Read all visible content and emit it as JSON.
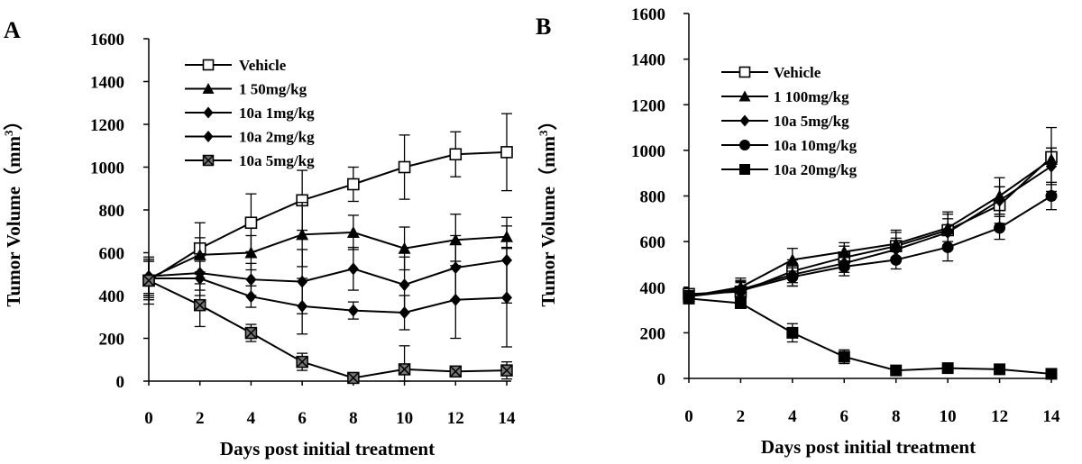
{
  "chart_data": [
    {
      "type": "line",
      "panel_label": "A",
      "title": "",
      "xlabel": "Days post initial treatment",
      "ylabel_main": "Tumor Volume（mm",
      "ylabel_sup": "3",
      "ylabel_close": "）",
      "xlim": [
        0,
        14
      ],
      "ylim": [
        0,
        1600
      ],
      "xticks": [
        "0",
        "2",
        "4",
        "6",
        "8",
        "10",
        "12",
        "14"
      ],
      "yticks": [
        "0",
        "200",
        "400",
        "600",
        "800",
        "1000",
        "1200",
        "1400",
        "1600"
      ],
      "legend_position": "top-center",
      "series": [
        {
          "name": "Vehicle",
          "marker": "open-square",
          "x": [
            0,
            2,
            4,
            6,
            8,
            10,
            12,
            14
          ],
          "values": [
            470,
            620,
            740,
            845,
            920,
            1000,
            1060,
            1070
          ],
          "errors": [
            110,
            120,
            135,
            140,
            80,
            150,
            105,
            180
          ]
        },
        {
          "name": "1 50mg/kg",
          "marker": "triangle",
          "x": [
            0,
            2,
            4,
            6,
            8,
            10,
            12,
            14
          ],
          "values": [
            480,
            590,
            600,
            685,
            695,
            620,
            660,
            675
          ],
          "errors": [
            90,
            80,
            80,
            150,
            80,
            100,
            120,
            50
          ]
        },
        {
          "name": "10a 1mg/kg",
          "marker": "diamond",
          "x": [
            0,
            2,
            4,
            6,
            8,
            10,
            12,
            14
          ],
          "values": [
            490,
            505,
            475,
            465,
            525,
            450,
            530,
            565
          ],
          "errors": [
            80,
            80,
            75,
            150,
            100,
            130,
            150,
            200
          ]
        },
        {
          "name": "10a 2mg/kg",
          "marker": "diamond",
          "x": [
            0,
            2,
            4,
            6,
            8,
            10,
            12,
            14
          ],
          "values": [
            480,
            480,
            395,
            350,
            330,
            320,
            380,
            390
          ],
          "errors": [
            80,
            80,
            50,
            130,
            40,
            80,
            180,
            230
          ]
        },
        {
          "name": "10a 5mg/kg",
          "marker": "crossed-square",
          "x": [
            0,
            2,
            4,
            6,
            8,
            10,
            12,
            14
          ],
          "values": [
            470,
            355,
            225,
            90,
            15,
            55,
            45,
            50
          ],
          "errors": [
            90,
            100,
            40,
            40,
            15,
            110,
            20,
            40
          ]
        }
      ]
    },
    {
      "type": "line",
      "panel_label": "B",
      "title": "",
      "xlabel": "Days post initial treatment",
      "ylabel_main": "Tumor Volume（mm",
      "ylabel_sup": "3",
      "ylabel_close": "）",
      "xlim": [
        0,
        14
      ],
      "ylim": [
        0,
        1600
      ],
      "xticks": [
        "0",
        "2",
        "4",
        "6",
        "8",
        "10",
        "12",
        "14"
      ],
      "yticks": [
        "0",
        "200",
        "400",
        "600",
        "800",
        "1000",
        "1200",
        "1400",
        "1600"
      ],
      "legend_position": "top-left",
      "series": [
        {
          "name": "Vehicle",
          "marker": "open-square",
          "x": [
            0,
            2,
            4,
            6,
            8,
            10,
            12,
            14
          ],
          "values": [
            370,
            380,
            470,
            530,
            580,
            650,
            760,
            970
          ],
          "errors": [
            20,
            40,
            50,
            50,
            60,
            80,
            80,
            40
          ]
        },
        {
          "name": "1 100mg/kg",
          "marker": "triangle",
          "x": [
            0,
            2,
            4,
            6,
            8,
            10,
            12,
            14
          ],
          "values": [
            360,
            400,
            520,
            555,
            590,
            660,
            800,
            960
          ],
          "errors": [
            20,
            40,
            50,
            40,
            60,
            60,
            80,
            140
          ]
        },
        {
          "name": "10a 5mg/kg",
          "marker": "diamond",
          "x": [
            0,
            2,
            4,
            6,
            8,
            10,
            12,
            14
          ],
          "values": [
            365,
            390,
            455,
            505,
            565,
            640,
            780,
            930
          ],
          "errors": [
            20,
            40,
            50,
            40,
            50,
            60,
            60,
            80
          ]
        },
        {
          "name": "10a 10mg/kg",
          "marker": "circle",
          "x": [
            0,
            2,
            4,
            6,
            8,
            10,
            12,
            14
          ],
          "values": [
            360,
            385,
            445,
            490,
            520,
            575,
            660,
            800
          ],
          "errors": [
            20,
            40,
            40,
            40,
            40,
            60,
            50,
            60
          ]
        },
        {
          "name": "10a 20mg/kg",
          "marker": "square",
          "x": [
            0,
            2,
            4,
            6,
            8,
            10,
            12,
            14
          ],
          "values": [
            350,
            330,
            200,
            95,
            35,
            45,
            40,
            20
          ],
          "errors": [
            20,
            20,
            40,
            30,
            15,
            15,
            15,
            10
          ]
        }
      ]
    }
  ]
}
